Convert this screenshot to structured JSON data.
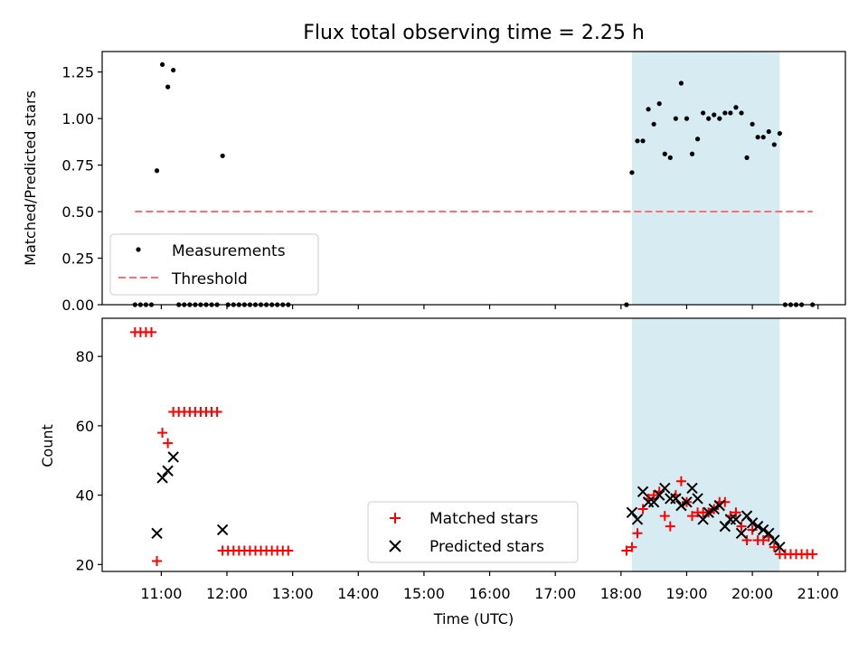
{
  "title": "Flux total observing time = 2.25 h",
  "colors": {
    "shade": "#add8e6",
    "ratio_marker": "#000000",
    "threshold": "#ff6f6f",
    "matched": "#ff0000",
    "predicted": "#000000"
  },
  "x_ticks": [
    "11:00",
    "12:00",
    "13:00",
    "14:00",
    "15:00",
    "16:00",
    "17:00",
    "18:00",
    "19:00",
    "20:00",
    "21:00"
  ],
  "chart_data": [
    {
      "type": "scatter",
      "ylabel": "Matched/Predicted stars",
      "xlabel": "",
      "ylim": [
        0,
        1.36
      ],
      "xlim": [
        "10:06",
        "21:25"
      ],
      "y_ticks": [
        "0.00",
        "0.25",
        "0.50",
        "0.75",
        "1.00",
        "1.25"
      ],
      "shaded_span": [
        "18:10",
        "20:25"
      ],
      "legend_position": "lower-left",
      "threshold": {
        "name": "Threshold",
        "y": 0.5,
        "x_range": [
          "10:36",
          "20:55"
        ],
        "style": "dashed"
      },
      "series": [
        {
          "name": "Measurements",
          "marker": "dot",
          "points": [
            [
              "10:36",
              0
            ],
            [
              "10:41",
              0
            ],
            [
              "10:46",
              0
            ],
            [
              "10:51",
              0
            ],
            [
              "10:56",
              0.72
            ],
            [
              "11:01",
              1.29
            ],
            [
              "11:06",
              1.17
            ],
            [
              "11:11",
              1.26
            ],
            [
              "11:16",
              0
            ],
            [
              "11:21",
              0
            ],
            [
              "11:26",
              0
            ],
            [
              "11:31",
              0
            ],
            [
              "11:36",
              0
            ],
            [
              "11:41",
              0
            ],
            [
              "11:46",
              0
            ],
            [
              "11:51",
              0
            ],
            [
              "11:56",
              0.8
            ],
            [
              "12:01",
              0
            ],
            [
              "12:06",
              0
            ],
            [
              "12:11",
              0
            ],
            [
              "12:16",
              0
            ],
            [
              "12:21",
              0
            ],
            [
              "12:26",
              0
            ],
            [
              "12:31",
              0
            ],
            [
              "12:36",
              0
            ],
            [
              "12:41",
              0
            ],
            [
              "12:46",
              0
            ],
            [
              "12:51",
              0
            ],
            [
              "12:56",
              0
            ],
            [
              "18:05",
              0
            ],
            [
              "18:10",
              0.71
            ],
            [
              "18:15",
              0.88
            ],
            [
              "18:20",
              0.88
            ],
            [
              "18:25",
              1.05
            ],
            [
              "18:30",
              0.97
            ],
            [
              "18:35",
              1.08
            ],
            [
              "18:40",
              0.81
            ],
            [
              "18:45",
              0.79
            ],
            [
              "18:50",
              1.0
            ],
            [
              "18:55",
              1.19
            ],
            [
              "19:00",
              1.0
            ],
            [
              "19:05",
              0.81
            ],
            [
              "19:10",
              0.89
            ],
            [
              "19:15",
              1.03
            ],
            [
              "19:20",
              1.0
            ],
            [
              "19:25",
              1.02
            ],
            [
              "19:30",
              1.0
            ],
            [
              "19:35",
              1.03
            ],
            [
              "19:40",
              1.03
            ],
            [
              "19:45",
              1.06
            ],
            [
              "19:50",
              1.03
            ],
            [
              "19:55",
              0.79
            ],
            [
              "20:00",
              0.97
            ],
            [
              "20:05",
              0.9
            ],
            [
              "20:10",
              0.9
            ],
            [
              "20:15",
              0.93
            ],
            [
              "20:20",
              0.86
            ],
            [
              "20:25",
              0.92
            ],
            [
              "20:30",
              0
            ],
            [
              "20:35",
              0
            ],
            [
              "20:40",
              0
            ],
            [
              "20:45",
              0
            ],
            [
              "20:55",
              0
            ]
          ]
        }
      ]
    },
    {
      "type": "scatter",
      "ylabel": "Count",
      "xlabel": "Time (UTC)",
      "ylim": [
        18,
        91
      ],
      "xlim": [
        "10:06",
        "21:25"
      ],
      "y_ticks": [
        "20",
        "40",
        "60",
        "80"
      ],
      "shaded_span": [
        "18:10",
        "20:25"
      ],
      "legend_position": "lower-center",
      "series": [
        {
          "name": "Matched stars",
          "marker": "plus",
          "points": [
            [
              "10:36",
              87
            ],
            [
              "10:41",
              87
            ],
            [
              "10:46",
              87
            ],
            [
              "10:51",
              87
            ],
            [
              "10:56",
              21
            ],
            [
              "11:01",
              58
            ],
            [
              "11:06",
              55
            ],
            [
              "11:11",
              64
            ],
            [
              "11:16",
              64
            ],
            [
              "11:21",
              64
            ],
            [
              "11:26",
              64
            ],
            [
              "11:31",
              64
            ],
            [
              "11:36",
              64
            ],
            [
              "11:41",
              64
            ],
            [
              "11:46",
              64
            ],
            [
              "11:51",
              64
            ],
            [
              "11:56",
              24
            ],
            [
              "12:01",
              24
            ],
            [
              "12:06",
              24
            ],
            [
              "12:11",
              24
            ],
            [
              "12:16",
              24
            ],
            [
              "12:21",
              24
            ],
            [
              "12:26",
              24
            ],
            [
              "12:31",
              24
            ],
            [
              "12:36",
              24
            ],
            [
              "12:41",
              24
            ],
            [
              "12:46",
              24
            ],
            [
              "12:51",
              24
            ],
            [
              "12:56",
              24
            ],
            [
              "18:05",
              24
            ],
            [
              "18:10",
              25
            ],
            [
              "18:15",
              29
            ],
            [
              "18:20",
              36
            ],
            [
              "18:25",
              39
            ],
            [
              "18:30",
              40
            ],
            [
              "18:35",
              41
            ],
            [
              "18:40",
              34
            ],
            [
              "18:45",
              31
            ],
            [
              "18:50",
              40
            ],
            [
              "18:55",
              44
            ],
            [
              "19:00",
              38
            ],
            [
              "19:05",
              34
            ],
            [
              "19:10",
              35
            ],
            [
              "19:15",
              35
            ],
            [
              "19:20",
              35
            ],
            [
              "19:25",
              36
            ],
            [
              "19:30",
              38
            ],
            [
              "19:35",
              38
            ],
            [
              "19:40",
              34
            ],
            [
              "19:45",
              35
            ],
            [
              "19:50",
              31
            ],
            [
              "19:55",
              27
            ],
            [
              "20:00",
              30
            ],
            [
              "20:05",
              27
            ],
            [
              "20:10",
              27
            ],
            [
              "20:15",
              28
            ],
            [
              "20:20",
              25
            ],
            [
              "20:25",
              23
            ],
            [
              "20:30",
              23
            ],
            [
              "20:35",
              23
            ],
            [
              "20:40",
              23
            ],
            [
              "20:45",
              23
            ],
            [
              "20:50",
              23
            ],
            [
              "20:55",
              23
            ]
          ]
        },
        {
          "name": "Predicted stars",
          "marker": "x",
          "points": [
            [
              "10:56",
              29
            ],
            [
              "11:01",
              45
            ],
            [
              "11:06",
              47
            ],
            [
              "11:11",
              51
            ],
            [
              "11:56",
              30
            ],
            [
              "18:10",
              35
            ],
            [
              "18:15",
              33
            ],
            [
              "18:20",
              41
            ],
            [
              "18:25",
              38
            ],
            [
              "18:30",
              38
            ],
            [
              "18:35",
              40
            ],
            [
              "18:40",
              42
            ],
            [
              "18:45",
              39
            ],
            [
              "18:50",
              39
            ],
            [
              "18:55",
              37
            ],
            [
              "19:00",
              38
            ],
            [
              "19:05",
              42
            ],
            [
              "19:10",
              39
            ],
            [
              "19:15",
              33
            ],
            [
              "19:20",
              35
            ],
            [
              "19:25",
              36
            ],
            [
              "19:30",
              37
            ],
            [
              "19:35",
              31
            ],
            [
              "19:40",
              33
            ],
            [
              "19:45",
              33
            ],
            [
              "19:50",
              29
            ],
            [
              "19:55",
              34
            ],
            [
              "20:00",
              32
            ],
            [
              "20:05",
              31
            ],
            [
              "20:10",
              30
            ],
            [
              "20:15",
              29
            ],
            [
              "20:20",
              27
            ],
            [
              "20:25",
              25
            ]
          ]
        }
      ]
    }
  ]
}
